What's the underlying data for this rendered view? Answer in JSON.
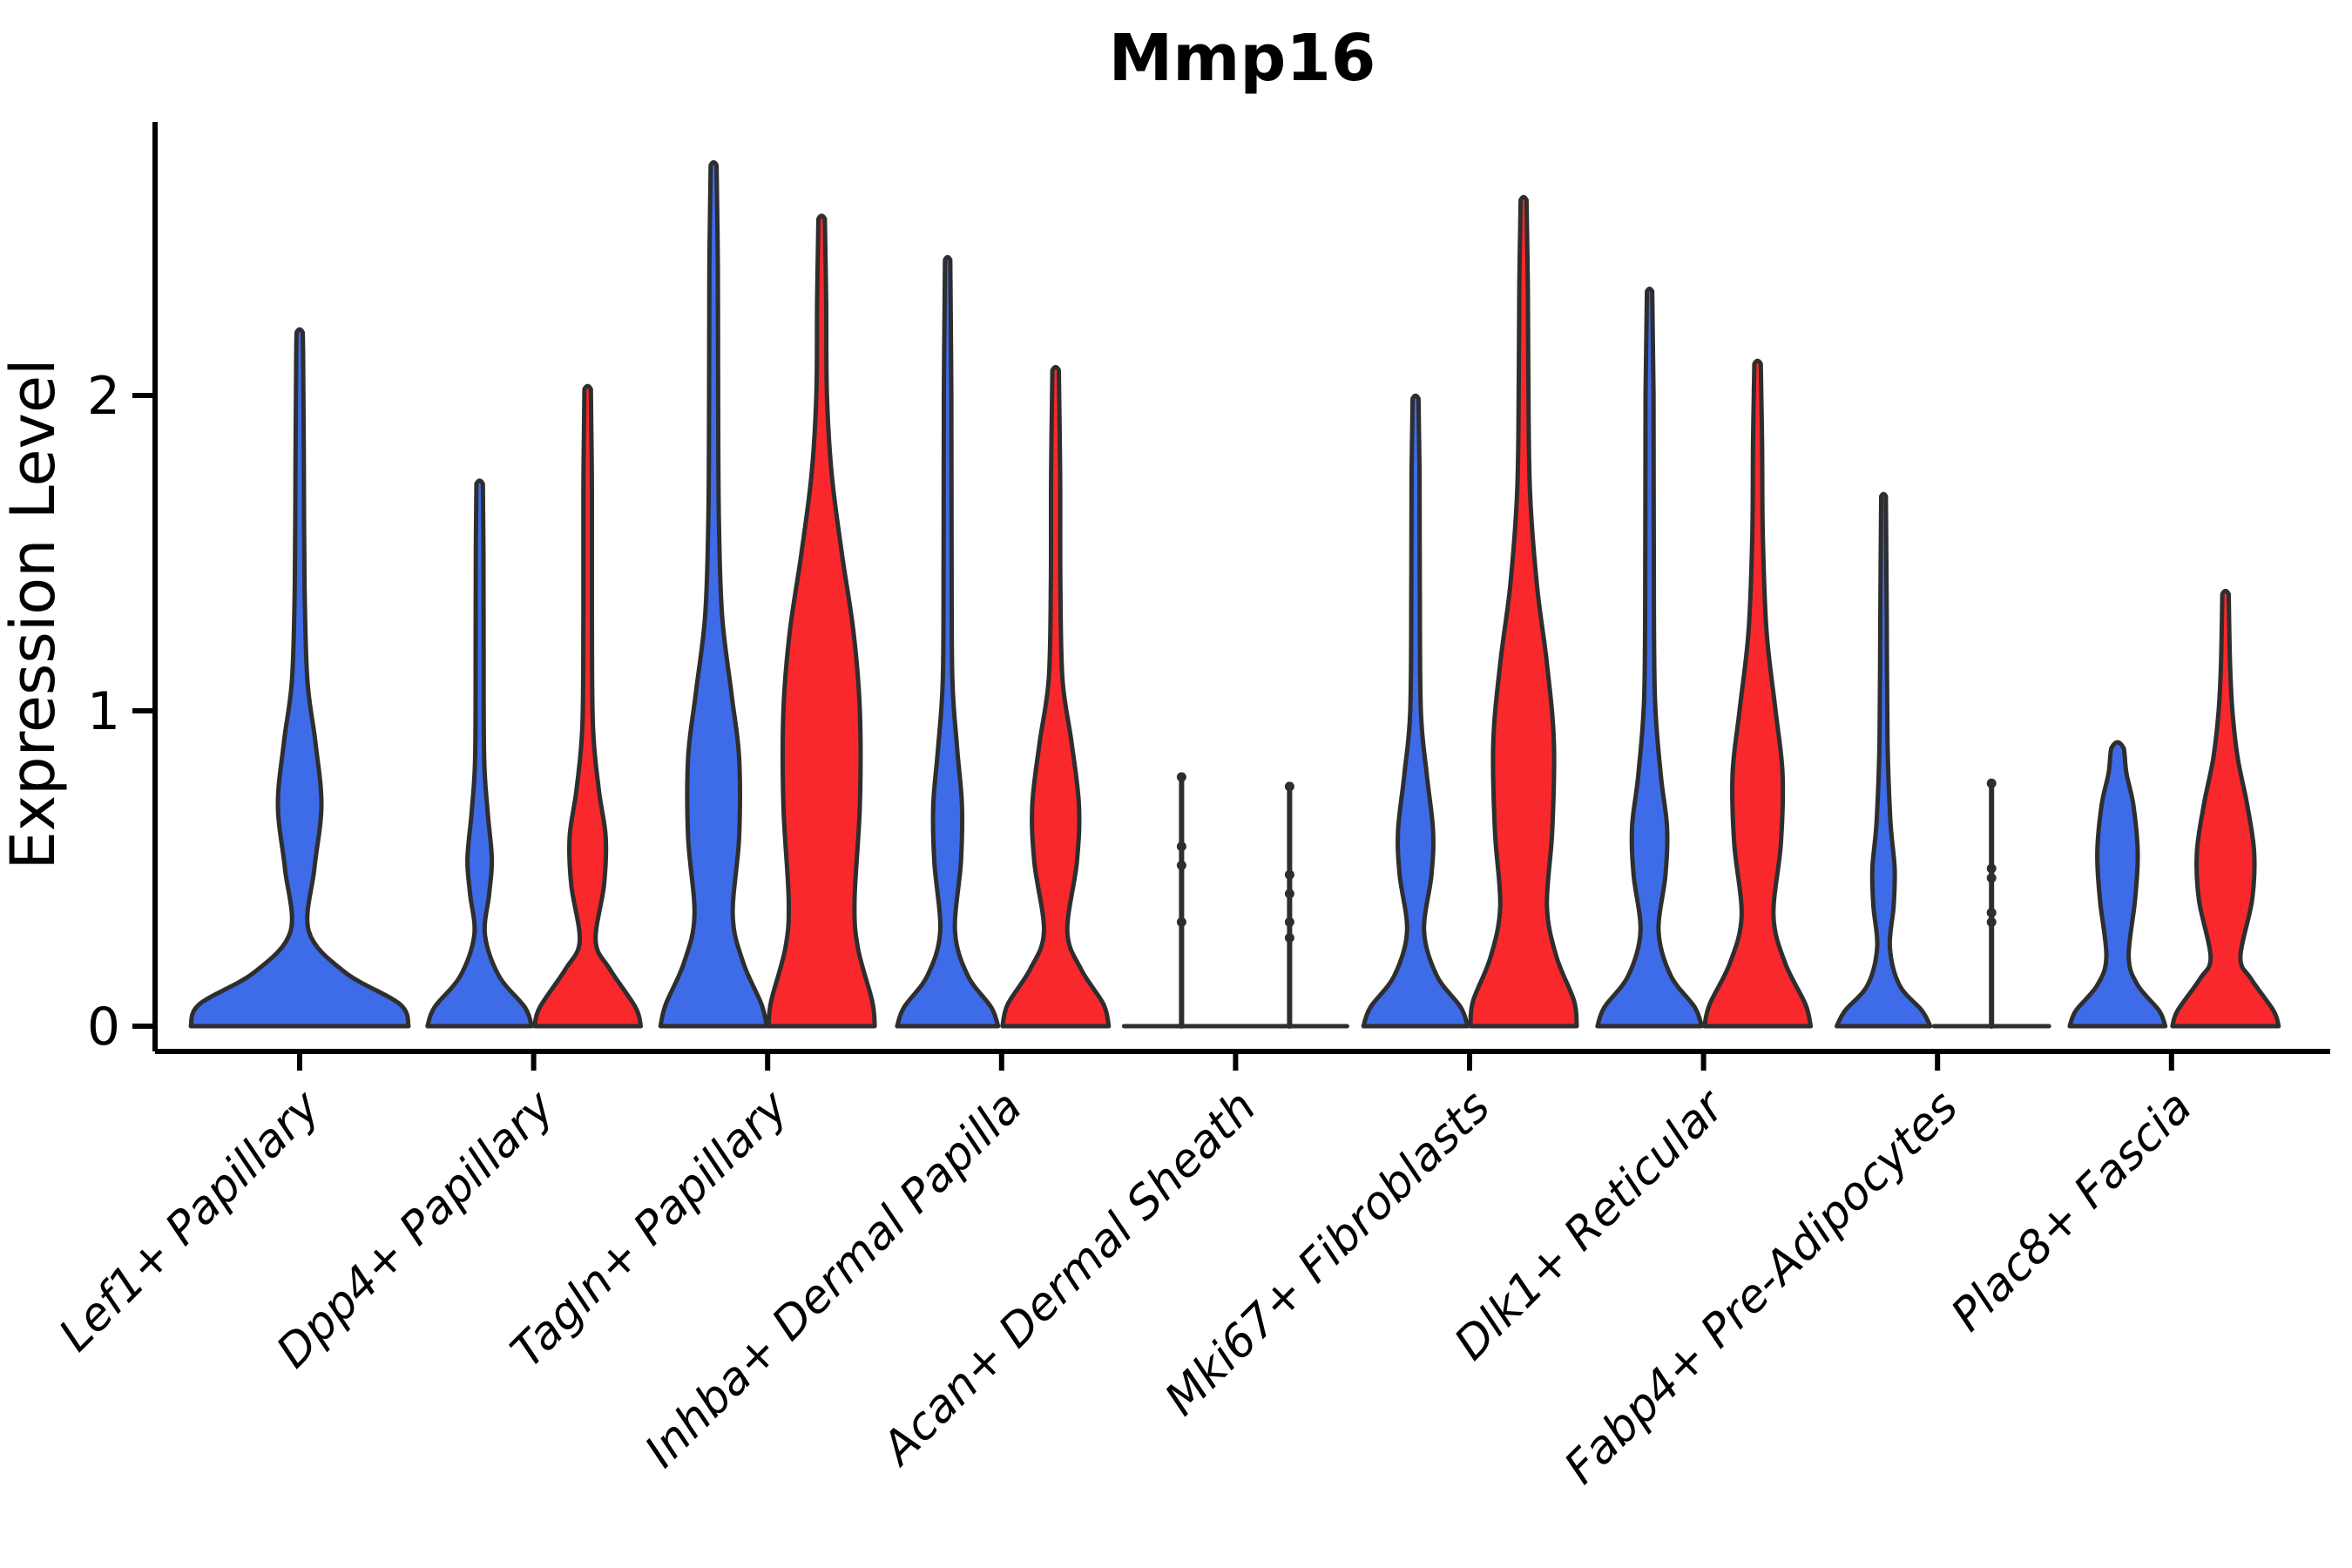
{
  "chart_data": {
    "type": "violin",
    "title": "Mmp16",
    "ylabel": "Expression Level",
    "xlabel": "",
    "yticks": [
      "0",
      "1",
      "2"
    ],
    "ytick_values": [
      0,
      1,
      2
    ],
    "ylim": [
      -0.08,
      2.87
    ],
    "grid": "off",
    "legend": "none",
    "categories": [
      "Lef1+ Papillary",
      "Dpp4+ Papillary",
      "Tagln+ Papillary",
      "Inhba+ Dermal Papilla",
      "Acan+ Dermal Sheath",
      "Mki67+ Fibroblasts",
      "Dlk1+ Reticular",
      "Fabp4+ Pre-Adipocytes",
      "Plac8+ Fascia"
    ],
    "series": [
      {
        "id": "blue",
        "color": "#3E6BE8"
      },
      {
        "id": "red",
        "color": "#F8282C"
      }
    ],
    "outline_color": "#2E2E2E",
    "groups": [
      {
        "category": "Lef1+ Papillary",
        "violins": [
          {
            "series": "blue",
            "kind": "violin",
            "span": "full",
            "max": 2.2,
            "width_scale": 2.05,
            "profile": [
              [
                0,
                1.0
              ],
              [
                0.07,
                0.92
              ],
              [
                0.17,
                0.42
              ],
              [
                0.3,
                0.085
              ],
              [
                0.5,
                0.135
              ],
              [
                0.7,
                0.2
              ],
              [
                0.9,
                0.145
              ],
              [
                1.1,
                0.07
              ],
              [
                1.4,
                0.045
              ],
              [
                1.8,
                0.038
              ],
              [
                2.12,
                0.032
              ],
              [
                2.2,
                0.028
              ]
            ]
          }
        ]
      },
      {
        "category": "Dpp4+ Papillary",
        "violins": [
          {
            "series": "blue",
            "kind": "violin",
            "max": 1.72,
            "width_scale": 1,
            "profile": [
              [
                0,
                0.98
              ],
              [
                0.06,
                0.85
              ],
              [
                0.16,
                0.36
              ],
              [
                0.29,
                0.1
              ],
              [
                0.42,
                0.18
              ],
              [
                0.53,
                0.23
              ],
              [
                0.68,
                0.15
              ],
              [
                0.85,
                0.085
              ],
              [
                1.2,
                0.075
              ],
              [
                1.5,
                0.072
              ],
              [
                1.72,
                0.06
              ]
            ]
          },
          {
            "series": "red",
            "kind": "violin",
            "max": 2.02,
            "width_scale": 1,
            "profile": [
              [
                0,
                1.0
              ],
              [
                0.06,
                0.9
              ],
              [
                0.18,
                0.42
              ],
              [
                0.27,
                0.15
              ],
              [
                0.45,
                0.31
              ],
              [
                0.6,
                0.34
              ],
              [
                0.75,
                0.21
              ],
              [
                0.95,
                0.1
              ],
              [
                1.3,
                0.08
              ],
              [
                1.7,
                0.08
              ],
              [
                2.02,
                0.06
              ]
            ]
          }
        ]
      },
      {
        "category": "Tagln+ Papillary",
        "violins": [
          {
            "series": "blue",
            "kind": "violin",
            "max": 2.73,
            "width_scale": 1,
            "profile": [
              [
                0,
                1.0
              ],
              [
                0.07,
                0.9
              ],
              [
                0.2,
                0.56
              ],
              [
                0.35,
                0.36
              ],
              [
                0.6,
                0.48
              ],
              [
                0.85,
                0.48
              ],
              [
                1.05,
                0.34
              ],
              [
                1.3,
                0.16
              ],
              [
                1.6,
                0.1
              ],
              [
                2.0,
                0.085
              ],
              [
                2.4,
                0.08
              ],
              [
                2.73,
                0.055
              ]
            ]
          },
          {
            "series": "red",
            "kind": "violin",
            "max": 2.56,
            "width_scale": 1,
            "profile": [
              [
                0,
                1.0
              ],
              [
                0.08,
                0.95
              ],
              [
                0.25,
                0.68
              ],
              [
                0.4,
                0.62
              ],
              [
                0.7,
                0.72
              ],
              [
                1.0,
                0.72
              ],
              [
                1.25,
                0.6
              ],
              [
                1.5,
                0.38
              ],
              [
                1.75,
                0.19
              ],
              [
                2.0,
                0.1
              ],
              [
                2.3,
                0.085
              ],
              [
                2.56,
                0.06
              ]
            ]
          }
        ]
      },
      {
        "category": "Inhba+ Dermal Papilla",
        "violins": [
          {
            "series": "blue",
            "kind": "violin",
            "max": 2.43,
            "width_scale": 1,
            "profile": [
              [
                0,
                0.95
              ],
              [
                0.06,
                0.82
              ],
              [
                0.16,
                0.38
              ],
              [
                0.3,
                0.14
              ],
              [
                0.52,
                0.25
              ],
              [
                0.7,
                0.27
              ],
              [
                0.88,
                0.18
              ],
              [
                1.1,
                0.09
              ],
              [
                1.5,
                0.075
              ],
              [
                2.0,
                0.07
              ],
              [
                2.43,
                0.05
              ]
            ]
          },
          {
            "series": "red",
            "kind": "violin",
            "max": 2.08,
            "width_scale": 1,
            "profile": [
              [
                0,
                1.0
              ],
              [
                0.07,
                0.9
              ],
              [
                0.18,
                0.48
              ],
              [
                0.3,
                0.22
              ],
              [
                0.52,
                0.4
              ],
              [
                0.7,
                0.44
              ],
              [
                0.9,
                0.3
              ],
              [
                1.1,
                0.13
              ],
              [
                1.4,
                0.09
              ],
              [
                1.75,
                0.085
              ],
              [
                2.08,
                0.06
              ]
            ]
          }
        ]
      },
      {
        "category": "Acan+ Dermal Sheath",
        "violins": [
          {
            "series": "blue",
            "kind": "line",
            "max": 0.79,
            "points": [
              0.79,
              0.57,
              0.51,
              0.33
            ]
          },
          {
            "series": "red",
            "kind": "line",
            "max": 0.76,
            "points": [
              0.76,
              0.48,
              0.42,
              0.33,
              0.28
            ]
          }
        ]
      },
      {
        "category": "Mki67+ Fibroblasts",
        "violins": [
          {
            "series": "blue",
            "kind": "violin",
            "max": 1.99,
            "width_scale": 1,
            "profile": [
              [
                0,
                0.98
              ],
              [
                0.06,
                0.85
              ],
              [
                0.16,
                0.4
              ],
              [
                0.3,
                0.16
              ],
              [
                0.48,
                0.3
              ],
              [
                0.62,
                0.33
              ],
              [
                0.8,
                0.21
              ],
              [
                1.0,
                0.1
              ],
              [
                1.4,
                0.08
              ],
              [
                1.75,
                0.075
              ],
              [
                1.99,
                0.055
              ]
            ]
          },
          {
            "series": "red",
            "kind": "violin",
            "max": 2.62,
            "width_scale": 1,
            "profile": [
              [
                0,
                1.0
              ],
              [
                0.08,
                0.95
              ],
              [
                0.22,
                0.62
              ],
              [
                0.38,
                0.44
              ],
              [
                0.62,
                0.54
              ],
              [
                0.9,
                0.57
              ],
              [
                1.15,
                0.44
              ],
              [
                1.4,
                0.25
              ],
              [
                1.7,
                0.12
              ],
              [
                2.05,
                0.09
              ],
              [
                2.35,
                0.08
              ],
              [
                2.62,
                0.055
              ]
            ]
          }
        ]
      },
      {
        "category": "Dlk1+ Reticular",
        "violins": [
          {
            "series": "blue",
            "kind": "violin",
            "max": 2.33,
            "width_scale": 1,
            "profile": [
              [
                0,
                0.98
              ],
              [
                0.06,
                0.85
              ],
              [
                0.16,
                0.4
              ],
              [
                0.3,
                0.17
              ],
              [
                0.48,
                0.3
              ],
              [
                0.63,
                0.33
              ],
              [
                0.8,
                0.21
              ],
              [
                1.05,
                0.1
              ],
              [
                1.5,
                0.08
              ],
              [
                2.0,
                0.075
              ],
              [
                2.33,
                0.05
              ]
            ]
          },
          {
            "series": "red",
            "kind": "violin",
            "max": 2.1,
            "width_scale": 1,
            "profile": [
              [
                0,
                1.0
              ],
              [
                0.07,
                0.9
              ],
              [
                0.2,
                0.52
              ],
              [
                0.35,
                0.3
              ],
              [
                0.58,
                0.44
              ],
              [
                0.8,
                0.47
              ],
              [
                1.0,
                0.34
              ],
              [
                1.25,
                0.17
              ],
              [
                1.55,
                0.1
              ],
              [
                1.85,
                0.085
              ],
              [
                2.1,
                0.06
              ]
            ]
          }
        ]
      },
      {
        "category": "Fabp4+ Pre-Adipocytes",
        "violins": [
          {
            "series": "blue",
            "kind": "violin",
            "max": 1.68,
            "width_scale": 1,
            "profile": [
              [
                0,
                0.88
              ],
              [
                0.05,
                0.72
              ],
              [
                0.13,
                0.3
              ],
              [
                0.25,
                0.12
              ],
              [
                0.38,
                0.19
              ],
              [
                0.5,
                0.21
              ],
              [
                0.65,
                0.13
              ],
              [
                0.9,
                0.075
              ],
              [
                1.3,
                0.06
              ],
              [
                1.68,
                0.045
              ]
            ]
          },
          {
            "series": "red",
            "kind": "line",
            "max": 0.77,
            "points": [
              0.77,
              0.5,
              0.47,
              0.36,
              0.33
            ]
          }
        ]
      },
      {
        "category": "Plac8+ Fascia",
        "violins": [
          {
            "series": "blue",
            "kind": "violin",
            "max": 0.88,
            "width_scale": 1,
            "profile": [
              [
                0,
                0.9
              ],
              [
                0.05,
                0.78
              ],
              [
                0.13,
                0.38
              ],
              [
                0.22,
                0.21
              ],
              [
                0.4,
                0.33
              ],
              [
                0.55,
                0.38
              ],
              [
                0.7,
                0.3
              ],
              [
                0.8,
                0.17
              ],
              [
                0.86,
                0.135
              ],
              [
                0.88,
                0.12
              ]
            ]
          },
          {
            "series": "red",
            "kind": "violin",
            "max": 1.37,
            "width_scale": 1,
            "profile": [
              [
                0,
                1.0
              ],
              [
                0.05,
                0.9
              ],
              [
                0.15,
                0.48
              ],
              [
                0.22,
                0.28
              ],
              [
                0.4,
                0.5
              ],
              [
                0.55,
                0.54
              ],
              [
                0.7,
                0.41
              ],
              [
                0.85,
                0.23
              ],
              [
                1.0,
                0.13
              ],
              [
                1.15,
                0.085
              ],
              [
                1.37,
                0.06
              ]
            ]
          }
        ]
      }
    ]
  }
}
